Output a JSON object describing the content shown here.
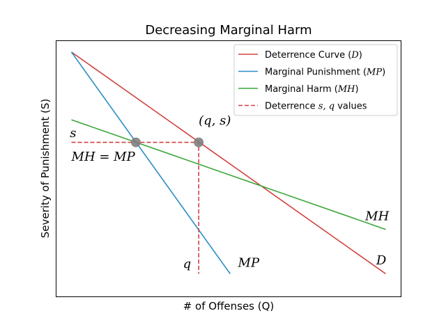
{
  "chart_data": {
    "type": "line",
    "title": "Decreasing Marginal Harm",
    "xlabel": "# of Offenses (Q)",
    "ylabel": "Severity of Punishment (S)",
    "xlim": [
      -0.5,
      10.5
    ],
    "ylim": [
      -0.5,
      10.5
    ],
    "xticks": false,
    "yticks": false,
    "grid": false,
    "legend_position": "upper-right",
    "series": [
      {
        "key": "D",
        "name": "Deterrence Curve (D)",
        "legend_prefix": "Deterrence Curve (",
        "legend_math": "D",
        "legend_suffix": ")",
        "color": "#d0413e",
        "style": "solid",
        "x": [
          0,
          10
        ],
        "y": [
          10,
          0.5
        ]
      },
      {
        "key": "MP",
        "name": "Marginal Punishment (MP)",
        "legend_prefix": "Marginal Punishment (",
        "legend_math": "MP",
        "legend_suffix": ")",
        "color": "#2b8cc4",
        "style": "solid",
        "x": [
          0,
          5.05
        ],
        "y": [
          10,
          0.5
        ]
      },
      {
        "key": "MH",
        "name": "Marginal Harm (MH)",
        "legend_prefix": "Marginal Harm (",
        "legend_math": "MH",
        "legend_suffix": ")",
        "color": "#3aa639",
        "style": "solid",
        "x": [
          0,
          10
        ],
        "y": [
          7.1,
          2.4
        ]
      },
      {
        "key": "guides",
        "name": "Deterrence s,q values",
        "legend_prefix": "Deterrence ",
        "legend_math": "s, q",
        "legend_suffix": " values",
        "color": "#d0413e",
        "style": "dashed",
        "x": [
          0,
          4.05,
          4.05
        ],
        "y": [
          6.13,
          6.13,
          0.5
        ]
      }
    ],
    "points": [
      {
        "key": "mh-mp",
        "x": 2.05,
        "y": 6.13,
        "color": "#808080"
      },
      {
        "key": "q-s",
        "x": 4.05,
        "y": 6.13,
        "color": "#808080"
      }
    ],
    "annotations": [
      {
        "key": "s",
        "text": "s",
        "x": -0.05,
        "y": 6.35
      },
      {
        "key": "mh-eq-mp",
        "text": "MH = MP",
        "x": 0.0,
        "y": 5.35
      },
      {
        "key": "qs",
        "text": "(q, s)",
        "x": 4.05,
        "y": 6.9
      },
      {
        "key": "q",
        "text": "q",
        "x": 3.55,
        "y": 0.75
      },
      {
        "key": "mp-end",
        "text": "MP",
        "x": 5.3,
        "y": 0.8
      },
      {
        "key": "mh-end",
        "text": "MH",
        "x": 9.35,
        "y": 2.8
      },
      {
        "key": "d-end",
        "text": "D",
        "x": 9.7,
        "y": 0.9
      }
    ]
  }
}
